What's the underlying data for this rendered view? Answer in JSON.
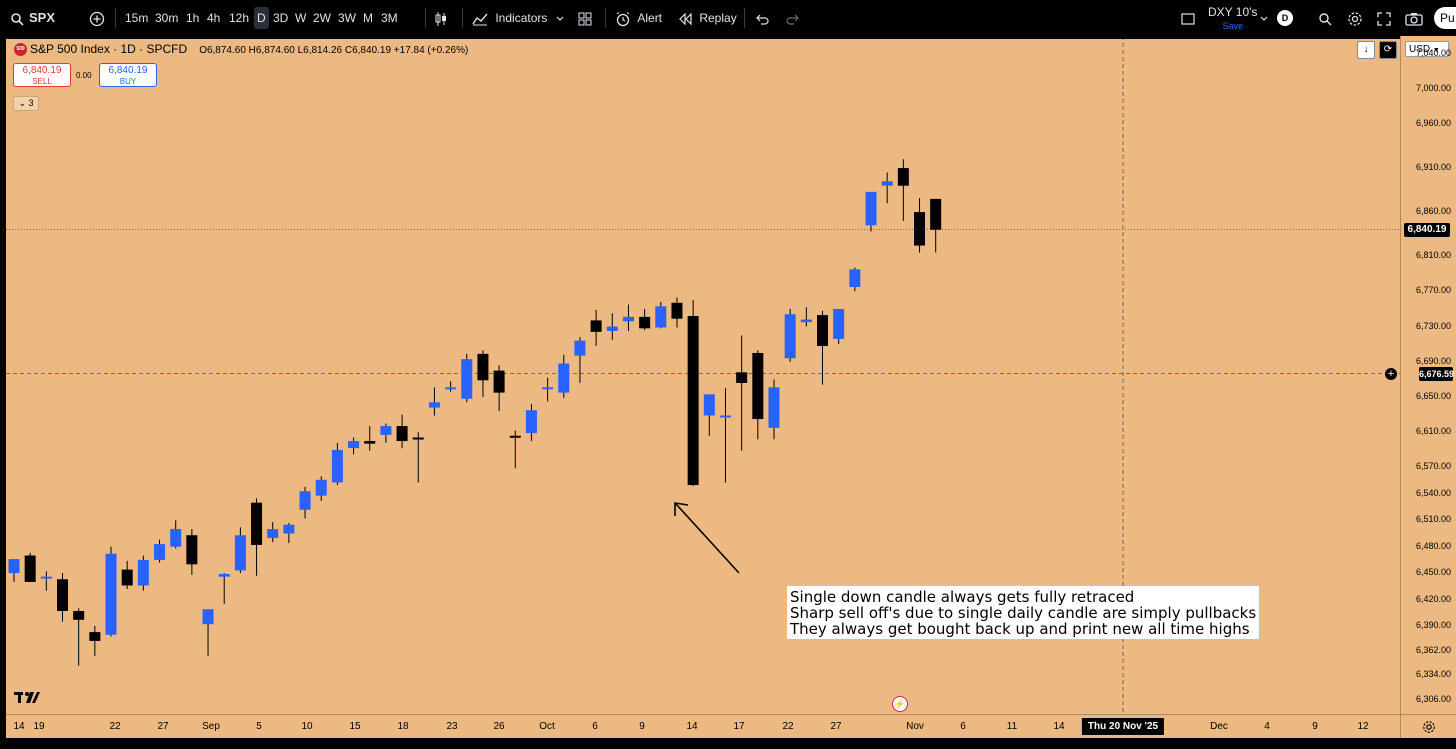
{
  "topbar": {
    "symbol": "SPX",
    "search_icon": "search-icon",
    "add_icon": "plus-circle-icon",
    "intervals": [
      "15m",
      "30m",
      "1h",
      "4h",
      "12h",
      "D",
      "3D",
      "W",
      "2W",
      "3W",
      "M",
      "3M"
    ],
    "active_interval": "D",
    "indicators_label": "Indicators",
    "alert_label": "Alert",
    "replay_label": "Replay",
    "watch_symbol": "DXY 10's",
    "watch_save": "Save",
    "watch_badge": "D",
    "publish_label": "Pu"
  },
  "legend": {
    "logo_text": "500",
    "title": "S&P 500 Index · 1D · SPCFD",
    "ohlc": "O6,874.60 H6,874.60 L6,814.26 C6,840.19 +17.84 (+0.26%)",
    "sell_price": "6,840.19",
    "sell_label": "SELL",
    "spread": "0.00",
    "buy_price": "6,840.19",
    "buy_label": "BUY",
    "collapsed_count": "3"
  },
  "axis": {
    "currency": "USD",
    "price_labels": [
      "7,040.00",
      "7,000.00",
      "6,960.00",
      "6,910.00",
      "6,860.00",
      "6,810.00",
      "6,770.00",
      "6,730.00",
      "6,690.00",
      "6,650.00",
      "6,610.00",
      "6,570.00",
      "6,540.00",
      "6,510.00",
      "6,480.00",
      "6,450.00",
      "6,420.00",
      "6,390.00",
      "6,362.00",
      "6,334.00",
      "6,306.00"
    ],
    "last_price": "6,840.19",
    "crosshair_price": "6,676.59",
    "date_labels": [
      "14",
      "19",
      "22",
      "27",
      "Sep",
      "5",
      "10",
      "15",
      "18",
      "23",
      "26",
      "Oct",
      "6",
      "9",
      "14",
      "17",
      "22",
      "27",
      "Nov",
      "6",
      "11",
      "14",
      "Dec",
      "4",
      "9",
      "12"
    ],
    "crosshair_date": "Thu 20 Nov '25"
  },
  "annotation": {
    "lines": [
      "Single down candle always gets fully retraced",
      "Sharp sell off's due to single daily candle are simply pullbacks",
      "They always get bought back up and print new all time highs"
    ]
  },
  "colors": {
    "background": "#ecb982",
    "up_candle": "#2962ff",
    "down_candle": "#000000"
  },
  "chart_data": {
    "type": "candlestick",
    "symbol": "SPX",
    "interval": "1D",
    "ylim": [
      6290,
      7060
    ],
    "candles": [
      {
        "o": 6450,
        "h": 6466,
        "l": 6440,
        "c": 6466
      },
      {
        "o": 6470,
        "h": 6473,
        "l": 6440,
        "c": 6440
      },
      {
        "o": 6444,
        "h": 6452,
        "l": 6430,
        "c": 6446
      },
      {
        "o": 6443,
        "h": 6450,
        "l": 6395,
        "c": 6407
      },
      {
        "o": 6407,
        "h": 6410,
        "l": 6345,
        "c": 6397
      },
      {
        "o": 6383,
        "h": 6390,
        "l": 6356,
        "c": 6373
      },
      {
        "o": 6380,
        "h": 6480,
        "l": 6378,
        "c": 6472
      },
      {
        "o": 6454,
        "h": 6464,
        "l": 6432,
        "c": 6436
      },
      {
        "o": 6436,
        "h": 6470,
        "l": 6430,
        "c": 6465
      },
      {
        "o": 6465,
        "h": 6488,
        "l": 6462,
        "c": 6483
      },
      {
        "o": 6480,
        "h": 6510,
        "l": 6478,
        "c": 6500
      },
      {
        "o": 6493,
        "h": 6500,
        "l": 6448,
        "c": 6460
      },
      {
        "o": 6392,
        "h": 6408,
        "l": 6356,
        "c": 6409
      },
      {
        "o": 6446,
        "h": 6450,
        "l": 6415,
        "c": 6449
      },
      {
        "o": 6453,
        "h": 6502,
        "l": 6450,
        "c": 6493
      },
      {
        "o": 6530,
        "h": 6535,
        "l": 6447,
        "c": 6482
      },
      {
        "o": 6490,
        "h": 6508,
        "l": 6485,
        "c": 6500
      },
      {
        "o": 6495,
        "h": 6507,
        "l": 6484,
        "c": 6505
      },
      {
        "o": 6522,
        "h": 6548,
        "l": 6512,
        "c": 6543
      },
      {
        "o": 6538,
        "h": 6560,
        "l": 6532,
        "c": 6556
      },
      {
        "o": 6553,
        "h": 6598,
        "l": 6550,
        "c": 6590
      },
      {
        "o": 6592,
        "h": 6604,
        "l": 6585,
        "c": 6600
      },
      {
        "o": 6600,
        "h": 6617,
        "l": 6589,
        "c": 6597
      },
      {
        "o": 6607,
        "h": 6620,
        "l": 6598,
        "c": 6617
      },
      {
        "o": 6617,
        "h": 6630,
        "l": 6592,
        "c": 6600
      },
      {
        "o": 6604,
        "h": 6610,
        "l": 6553,
        "c": 6603
      },
      {
        "o": 6638,
        "h": 6661,
        "l": 6629,
        "c": 6644
      },
      {
        "o": 6660,
        "h": 6668,
        "l": 6656,
        "c": 6661
      },
      {
        "o": 6648,
        "h": 6699,
        "l": 6644,
        "c": 6693
      },
      {
        "o": 6699,
        "h": 6703,
        "l": 6650,
        "c": 6669
      },
      {
        "o": 6680,
        "h": 6686,
        "l": 6634,
        "c": 6655
      },
      {
        "o": 6606,
        "h": 6612,
        "l": 6569,
        "c": 6604
      },
      {
        "o": 6609,
        "h": 6642,
        "l": 6600,
        "c": 6635
      },
      {
        "o": 6660,
        "h": 6672,
        "l": 6645,
        "c": 6661
      },
      {
        "o": 6655,
        "h": 6698,
        "l": 6649,
        "c": 6688
      },
      {
        "o": 6697,
        "h": 6718,
        "l": 6666,
        "c": 6714
      },
      {
        "o": 6737,
        "h": 6749,
        "l": 6708,
        "c": 6724
      },
      {
        "o": 6725,
        "h": 6745,
        "l": 6715,
        "c": 6730
      },
      {
        "o": 6736,
        "h": 6755,
        "l": 6725,
        "c": 6741
      },
      {
        "o": 6741,
        "h": 6750,
        "l": 6726,
        "c": 6728
      },
      {
        "o": 6729,
        "h": 6758,
        "l": 6728,
        "c": 6753
      },
      {
        "o": 6757,
        "h": 6763,
        "l": 6729,
        "c": 6739
      },
      {
        "o": 6742,
        "h": 6760,
        "l": 6549,
        "c": 6550
      },
      {
        "o": 6629,
        "h": 6648,
        "l": 6606,
        "c": 6653
      },
      {
        "o": 6627,
        "h": 6660,
        "l": 6553,
        "c": 6629
      },
      {
        "o": 6678,
        "h": 6720,
        "l": 6589,
        "c": 6666
      },
      {
        "o": 6700,
        "h": 6703,
        "l": 6602,
        "c": 6625
      },
      {
        "o": 6615,
        "h": 6670,
        "l": 6602,
        "c": 6661
      },
      {
        "o": 6694,
        "h": 6750,
        "l": 6690,
        "c": 6744
      },
      {
        "o": 6735,
        "h": 6752,
        "l": 6730,
        "c": 6738
      },
      {
        "o": 6743,
        "h": 6748,
        "l": 6664,
        "c": 6708
      },
      {
        "o": 6716,
        "h": 6748,
        "l": 6710,
        "c": 6750
      },
      {
        "o": 6775,
        "h": 6797,
        "l": 6770,
        "c": 6795
      },
      {
        "o": 6845,
        "h": 6880,
        "l": 6838,
        "c": 6883
      },
      {
        "o": 6890,
        "h": 6905,
        "l": 6870,
        "c": 6895
      },
      {
        "o": 6910,
        "h": 6920,
        "l": 6850,
        "c": 6890
      },
      {
        "o": 6860,
        "h": 6876,
        "l": 6814,
        "c": 6822
      },
      {
        "o": 6875,
        "h": 6875,
        "l": 6814,
        "c": 6840
      }
    ]
  }
}
